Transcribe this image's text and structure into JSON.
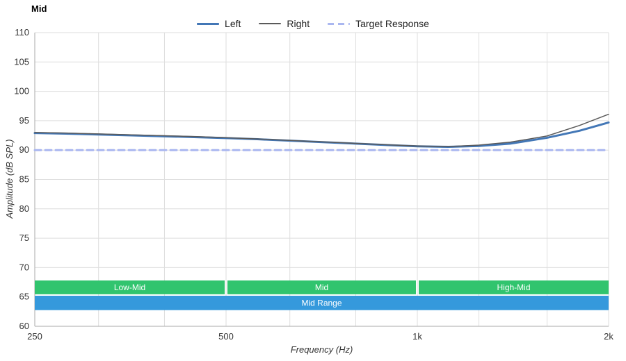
{
  "page": {
    "title": "Mid",
    "background": "#ffffff"
  },
  "chart_data": {
    "type": "line",
    "title": "Mid",
    "xlabel": "Frequency (Hz)",
    "ylabel": "Amplitude (dB SPL)",
    "x_scale": "log",
    "xlim": [
      250,
      2000
    ],
    "ylim": [
      60,
      110
    ],
    "y_ticks": [
      60,
      65,
      70,
      75,
      80,
      85,
      90,
      95,
      100,
      105,
      110
    ],
    "x_major_ticks": [
      {
        "value": 250,
        "label": "250"
      },
      {
        "value": 500,
        "label": "500"
      },
      {
        "value": 1000,
        "label": "1k"
      },
      {
        "value": 2000,
        "label": "2k"
      }
    ],
    "x_gridlines": [
      250,
      315,
      400,
      500,
      630,
      800,
      1000,
      1250,
      1600,
      2000
    ],
    "x": [
      250,
      280,
      315,
      355,
      400,
      450,
      500,
      560,
      630,
      710,
      800,
      900,
      1000,
      1120,
      1250,
      1400,
      1600,
      1800,
      2000
    ],
    "series": [
      {
        "name": "Left",
        "color": "#4377b6",
        "width": 3,
        "values": [
          92.9,
          92.8,
          92.65,
          92.5,
          92.35,
          92.2,
          92.05,
          91.85,
          91.6,
          91.35,
          91.1,
          90.85,
          90.65,
          90.55,
          90.7,
          91.1,
          92.1,
          93.3,
          94.7
        ]
      },
      {
        "name": "Right",
        "color": "#5a5a5a",
        "width": 1.5,
        "values": [
          93.0,
          92.9,
          92.75,
          92.6,
          92.45,
          92.3,
          92.1,
          91.9,
          91.65,
          91.4,
          91.15,
          90.9,
          90.7,
          90.6,
          90.85,
          91.35,
          92.4,
          94.2,
          96.1
        ]
      },
      {
        "name": "Target Response",
        "color": "#aab7f0",
        "width": 3,
        "dash": "9 6",
        "values": [
          90,
          90,
          90,
          90,
          90,
          90,
          90,
          90,
          90,
          90,
          90,
          90,
          90,
          90,
          90,
          90,
          90,
          90,
          90
        ]
      }
    ],
    "bands": [
      {
        "label": "Low-Mid",
        "x0": 250,
        "x1": 500,
        "y0": 65.45,
        "y1": 67.8,
        "color": "#31c46e",
        "inset": 2
      },
      {
        "label": "Mid",
        "x0": 500,
        "x1": 1000,
        "y0": 65.45,
        "y1": 67.8,
        "color": "#31c46e",
        "inset": 2
      },
      {
        "label": "High-Mid",
        "x0": 1000,
        "x1": 2000,
        "y0": 65.45,
        "y1": 67.8,
        "color": "#31c46e",
        "inset": 2
      },
      {
        "label": "Mid Range",
        "x0": 250,
        "x1": 2000,
        "y0": 62.75,
        "y1": 65.2,
        "color": "#3599dc",
        "inset": 0
      }
    ],
    "grid_color": "#dedede",
    "axis_color": "#aaaaaa",
    "text_color": "#333333",
    "band_text_color": "#ffffff"
  }
}
